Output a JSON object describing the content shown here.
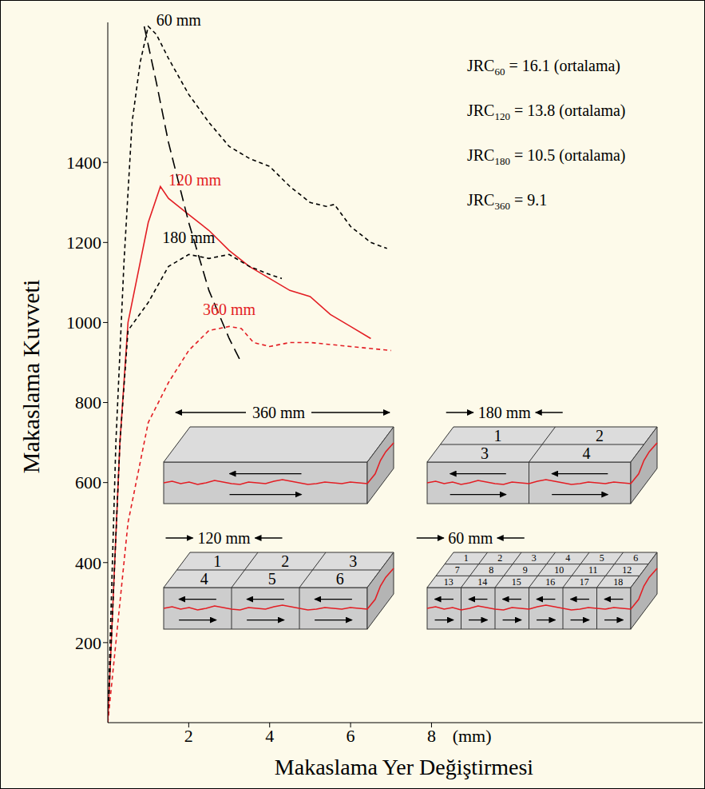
{
  "chart_data": {
    "type": "line",
    "xlabel": "Makaslama Yer Değiştirmesi",
    "ylabel": "Makaslama Kuvveti",
    "xlim": [
      0,
      14.7
    ],
    "xticks": [
      2,
      4,
      6,
      8
    ],
    "ylim": [
      0,
      1750
    ],
    "yticks": [
      200,
      400,
      600,
      800,
      1000,
      1200,
      1400
    ],
    "grid": false,
    "series": [
      {
        "name": "60 mm",
        "color": "#000000",
        "line_style": "dashed",
        "x": [
          0,
          0.2,
          0.4,
          0.6,
          0.8,
          1.0,
          1.2,
          1.5,
          2,
          2.5,
          3,
          3.5,
          4,
          4.5,
          5,
          5.4,
          5.6,
          6,
          6.5,
          6.9
        ],
        "values": [
          0,
          700,
          1150,
          1500,
          1650,
          1740,
          1720,
          1660,
          1570,
          1500,
          1440,
          1410,
          1390,
          1340,
          1300,
          1290,
          1295,
          1240,
          1200,
          1185
        ]
      },
      {
        "name": "120 mm",
        "color": "#e31e24",
        "line_style": "solid",
        "x": [
          0,
          0.3,
          0.5,
          0.8,
          1,
          1.3,
          1.5,
          2,
          2.5,
          3,
          3.5,
          4,
          4.5,
          5,
          5.5,
          6,
          6.5
        ],
        "values": [
          0,
          700,
          1000,
          1150,
          1250,
          1340,
          1310,
          1270,
          1230,
          1180,
          1140,
          1110,
          1080,
          1065,
          1020,
          990,
          960
        ]
      },
      {
        "name": "180 mm",
        "color": "#000000",
        "line_style": "dashed",
        "x": [
          0,
          0.3,
          0.5,
          1,
          1.5,
          2,
          2.5,
          3,
          3.5,
          4,
          4.3
        ],
        "values": [
          0,
          700,
          980,
          1050,
          1140,
          1170,
          1160,
          1170,
          1140,
          1120,
          1110
        ]
      },
      {
        "name": "360 mm",
        "color": "#e31e24",
        "line_style": "dashed",
        "x": [
          0,
          0.5,
          1,
          1.5,
          2,
          2.5,
          3,
          3.3,
          3.6,
          4,
          4.5,
          5,
          6,
          7
        ],
        "values": [
          0,
          500,
          750,
          850,
          930,
          980,
          990,
          985,
          950,
          940,
          950,
          950,
          940,
          930
        ]
      },
      {
        "color": "#000000",
        "line_style": "long_dashed",
        "x": [
          0.9,
          1.2,
          1.5,
          2,
          2.5,
          3,
          3.3
        ],
        "values": [
          1740,
          1600,
          1450,
          1250,
          1080,
          960,
          900
        ]
      }
    ],
    "annotations": [
      {
        "text": "(mm)",
        "x": 9.0
      },
      {
        "text": "JRC",
        "subscript": "60",
        "suffix": " = 16.1 (ortalama)"
      },
      {
        "text": "JRC",
        "subscript": "120",
        "suffix": " = 13.8 (ortalama)"
      },
      {
        "text": "JRC",
        "subscript": "180",
        "suffix": " = 10.5 (ortalama)"
      },
      {
        "text": "JRC",
        "subscript": "360",
        "suffix": " = 9.1"
      }
    ],
    "specimens": [
      {
        "label": "360 mm",
        "blocks": []
      },
      {
        "label": "180 mm",
        "blocks": [
          1,
          2,
          3,
          4
        ]
      },
      {
        "label": "120 mm",
        "blocks": [
          1,
          2,
          3,
          4,
          5,
          6
        ]
      },
      {
        "label": "60 mm",
        "blocks": [
          1,
          2,
          3,
          4,
          5,
          6,
          7,
          8,
          9,
          10,
          11,
          12,
          13,
          14,
          15,
          16,
          17,
          18
        ]
      }
    ]
  }
}
